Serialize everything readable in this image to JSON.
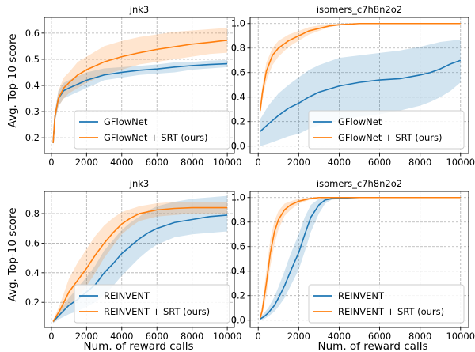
{
  "figure": {
    "shared_ylabel": "Avg. Top-10 score",
    "shared_xlabel": "Num. of reward calls"
  },
  "colors": {
    "blue": "#1f77b4",
    "orange": "#ff7f0e",
    "grid": "#b0b0b0"
  },
  "chart_data": [
    {
      "type": "line",
      "title": "jnk3",
      "xlabel": "",
      "ylabel": "Avg. Top-10 score",
      "xlim": [
        -400,
        10400
      ],
      "ylim": [
        0.14,
        0.66
      ],
      "xticks": [
        0,
        2000,
        4000,
        6000,
        8000,
        10000
      ],
      "yticks": [
        0.2,
        0.3,
        0.4,
        0.5,
        0.6
      ],
      "ytick_labels": [
        "0.2",
        "0.3",
        "0.4",
        "0.5",
        "0.6"
      ],
      "grid": true,
      "legend_position": "lower-right",
      "series": [
        {
          "name": "GFlowNet",
          "color": "blue",
          "x": [
            100,
            200,
            400,
            700,
            1000,
            1500,
            2000,
            3000,
            4000,
            5000,
            6000,
            7000,
            8000,
            9000,
            10000
          ],
          "y": [
            0.18,
            0.28,
            0.35,
            0.38,
            0.39,
            0.405,
            0.42,
            0.44,
            0.45,
            0.458,
            0.463,
            0.47,
            0.476,
            0.48,
            0.483
          ],
          "lower": [
            0.17,
            0.26,
            0.32,
            0.35,
            0.36,
            0.375,
            0.39,
            0.42,
            0.43,
            0.44,
            0.445,
            0.45,
            0.46,
            0.465,
            0.47
          ],
          "upper": [
            0.19,
            0.3,
            0.38,
            0.41,
            0.42,
            0.435,
            0.45,
            0.465,
            0.47,
            0.475,
            0.48,
            0.488,
            0.49,
            0.495,
            0.497
          ]
        },
        {
          "name": "GFlowNet + SRT (ours)",
          "color": "orange",
          "x": [
            100,
            200,
            400,
            700,
            1000,
            1500,
            2000,
            3000,
            4000,
            5000,
            6000,
            7000,
            8000,
            9000,
            10000
          ],
          "y": [
            0.18,
            0.28,
            0.35,
            0.39,
            0.41,
            0.44,
            0.46,
            0.49,
            0.51,
            0.525,
            0.538,
            0.548,
            0.558,
            0.565,
            0.573
          ],
          "lower": [
            0.17,
            0.26,
            0.32,
            0.35,
            0.37,
            0.39,
            0.41,
            0.44,
            0.46,
            0.48,
            0.49,
            0.5,
            0.51,
            0.52,
            0.525
          ],
          "upper": [
            0.19,
            0.3,
            0.38,
            0.43,
            0.45,
            0.49,
            0.51,
            0.55,
            0.57,
            0.585,
            0.595,
            0.605,
            0.61,
            0.615,
            0.62
          ]
        }
      ]
    },
    {
      "type": "line",
      "title": "isomers_c7h8n2o2",
      "xlabel": "",
      "ylabel": "",
      "xlim": [
        -400,
        10400
      ],
      "ylim": [
        -0.06,
        1.05
      ],
      "xticks": [
        0,
        2000,
        4000,
        6000,
        8000,
        10000
      ],
      "yticks": [
        0.0,
        0.2,
        0.4,
        0.6,
        0.8,
        1.0
      ],
      "ytick_labels": [
        "0.0",
        "0.2",
        "0.4",
        "0.6",
        "0.8",
        "1.0"
      ],
      "grid": true,
      "legend_position": "lower-right",
      "series": [
        {
          "name": "GFlowNet",
          "color": "blue",
          "x": [
            100,
            500,
            1000,
            1500,
            2000,
            2500,
            3000,
            4000,
            5000,
            6000,
            7000,
            8000,
            8500,
            9000,
            9500,
            10000
          ],
          "y": [
            0.12,
            0.18,
            0.25,
            0.31,
            0.35,
            0.4,
            0.44,
            0.49,
            0.52,
            0.54,
            0.55,
            0.58,
            0.6,
            0.63,
            0.67,
            0.7
          ],
          "lower": [
            0.0,
            0.02,
            0.05,
            0.08,
            0.1,
            0.14,
            0.17,
            0.21,
            0.24,
            0.26,
            0.29,
            0.33,
            0.36,
            0.4,
            0.45,
            0.52
          ],
          "upper": [
            0.22,
            0.33,
            0.43,
            0.5,
            0.56,
            0.62,
            0.66,
            0.72,
            0.74,
            0.76,
            0.78,
            0.81,
            0.83,
            0.85,
            0.86,
            0.87
          ]
        },
        {
          "name": "GFlowNet + SRT (ours)",
          "color": "orange",
          "x": [
            100,
            200,
            400,
            700,
            1000,
            1500,
            2000,
            2500,
            3000,
            3500,
            4000,
            4500,
            5000,
            6000,
            7000,
            8000,
            9000,
            10000
          ],
          "y": [
            0.29,
            0.43,
            0.61,
            0.74,
            0.8,
            0.86,
            0.9,
            0.94,
            0.96,
            0.98,
            0.99,
            0.995,
            1.0,
            1.0,
            1.0,
            1.0,
            1.0,
            1.0
          ],
          "lower": [
            0.25,
            0.37,
            0.53,
            0.66,
            0.73,
            0.81,
            0.86,
            0.91,
            0.94,
            0.97,
            0.985,
            0.99,
            0.998,
            1.0,
            1.0,
            1.0,
            1.0,
            1.0
          ],
          "upper": [
            0.33,
            0.49,
            0.68,
            0.8,
            0.86,
            0.91,
            0.94,
            0.97,
            0.985,
            0.995,
            1.0,
            1.0,
            1.0,
            1.0,
            1.0,
            1.0,
            1.0,
            1.0
          ]
        }
      ]
    },
    {
      "type": "line",
      "title": "jnk3",
      "xlabel": "Num. of reward calls",
      "ylabel": "Avg. Top-10 score",
      "xlim": [
        -400,
        10400
      ],
      "ylim": [
        0.03,
        0.95
      ],
      "xticks": [
        0,
        2000,
        4000,
        6000,
        8000,
        10000
      ],
      "yticks": [
        0.2,
        0.4,
        0.6,
        0.8
      ],
      "ytick_labels": [
        "0.2",
        "0.4",
        "0.6",
        "0.8"
      ],
      "grid": true,
      "legend_position": "lower-right",
      "series": [
        {
          "name": "REINVENT",
          "color": "blue",
          "x": [
            100,
            500,
            1000,
            1500,
            2000,
            2500,
            3000,
            3500,
            4000,
            4500,
            5000,
            5500,
            6000,
            7000,
            8000,
            9000,
            10000
          ],
          "y": [
            0.07,
            0.12,
            0.18,
            0.22,
            0.27,
            0.32,
            0.4,
            0.46,
            0.53,
            0.58,
            0.63,
            0.67,
            0.7,
            0.74,
            0.76,
            0.78,
            0.79
          ],
          "lower": [
            0.06,
            0.09,
            0.12,
            0.14,
            0.17,
            0.2,
            0.25,
            0.31,
            0.38,
            0.44,
            0.5,
            0.55,
            0.59,
            0.64,
            0.66,
            0.67,
            0.68
          ],
          "upper": [
            0.08,
            0.15,
            0.23,
            0.3,
            0.37,
            0.45,
            0.55,
            0.62,
            0.69,
            0.74,
            0.78,
            0.82,
            0.85,
            0.88,
            0.9,
            0.91,
            0.92
          ]
        },
        {
          "name": "REINVENT + SRT (ours)",
          "color": "orange",
          "x": [
            100,
            500,
            1000,
            1500,
            2000,
            2500,
            3000,
            3500,
            4000,
            4500,
            5000,
            6000,
            7000,
            8000,
            9000,
            10000
          ],
          "y": [
            0.07,
            0.15,
            0.27,
            0.35,
            0.43,
            0.52,
            0.6,
            0.67,
            0.73,
            0.77,
            0.8,
            0.825,
            0.835,
            0.84,
            0.84,
            0.84
          ],
          "lower": [
            0.06,
            0.11,
            0.18,
            0.24,
            0.31,
            0.4,
            0.5,
            0.58,
            0.66,
            0.71,
            0.75,
            0.78,
            0.79,
            0.8,
            0.8,
            0.8
          ],
          "upper": [
            0.08,
            0.19,
            0.36,
            0.47,
            0.56,
            0.65,
            0.72,
            0.77,
            0.81,
            0.83,
            0.85,
            0.87,
            0.88,
            0.88,
            0.88,
            0.88
          ]
        }
      ]
    },
    {
      "type": "line",
      "title": "isomers_c7h8n2o2",
      "xlabel": "Num. of reward calls",
      "ylabel": "",
      "xlim": [
        -400,
        10400
      ],
      "ylim": [
        -0.06,
        1.05
      ],
      "xticks": [
        0,
        2000,
        4000,
        6000,
        8000,
        10000
      ],
      "yticks": [
        0.0,
        0.2,
        0.4,
        0.6,
        0.8,
        1.0
      ],
      "ytick_labels": [
        "0.0",
        "0.2",
        "0.4",
        "0.6",
        "0.8",
        "1.0"
      ],
      "grid": true,
      "legend_position": "lower-right",
      "series": [
        {
          "name": "REINVENT",
          "color": "blue",
          "x": [
            100,
            300,
            500,
            800,
            1000,
            1300,
            1600,
            2000,
            2300,
            2600,
            3000,
            3300,
            3600,
            4000,
            5000,
            6000,
            7000,
            8000,
            9000,
            10000
          ],
          "y": [
            0.01,
            0.03,
            0.06,
            0.12,
            0.18,
            0.28,
            0.4,
            0.55,
            0.7,
            0.84,
            0.94,
            0.98,
            0.99,
            0.995,
            1.0,
            1.0,
            1.0,
            1.0,
            1.0,
            1.0
          ],
          "lower": [
            0.0,
            0.01,
            0.03,
            0.07,
            0.11,
            0.18,
            0.28,
            0.41,
            0.56,
            0.72,
            0.87,
            0.95,
            0.98,
            0.99,
            1.0,
            1.0,
            1.0,
            1.0,
            1.0,
            1.0
          ],
          "upper": [
            0.02,
            0.06,
            0.1,
            0.19,
            0.27,
            0.4,
            0.54,
            0.7,
            0.84,
            0.94,
            0.99,
            1.0,
            1.0,
            1.0,
            1.0,
            1.0,
            1.0,
            1.0,
            1.0,
            1.0
          ]
        },
        {
          "name": "REINVENT + SRT (ours)",
          "color": "orange",
          "x": [
            100,
            200,
            400,
            600,
            800,
            1000,
            1300,
            1600,
            2000,
            2500,
            3000,
            4000,
            5000,
            6000,
            7000,
            8000,
            9000,
            10000
          ],
          "y": [
            0.02,
            0.08,
            0.3,
            0.55,
            0.72,
            0.82,
            0.9,
            0.94,
            0.97,
            0.99,
            1.0,
            1.0,
            1.0,
            1.0,
            1.0,
            1.0,
            1.0,
            1.0
          ],
          "lower": [
            0.0,
            0.04,
            0.2,
            0.44,
            0.62,
            0.74,
            0.85,
            0.9,
            0.95,
            0.98,
            0.995,
            1.0,
            1.0,
            1.0,
            1.0,
            1.0,
            1.0,
            1.0
          ],
          "upper": [
            0.04,
            0.13,
            0.4,
            0.66,
            0.81,
            0.89,
            0.95,
            0.97,
            0.99,
            1.0,
            1.0,
            1.0,
            1.0,
            1.0,
            1.0,
            1.0,
            1.0,
            1.0
          ]
        }
      ]
    }
  ]
}
